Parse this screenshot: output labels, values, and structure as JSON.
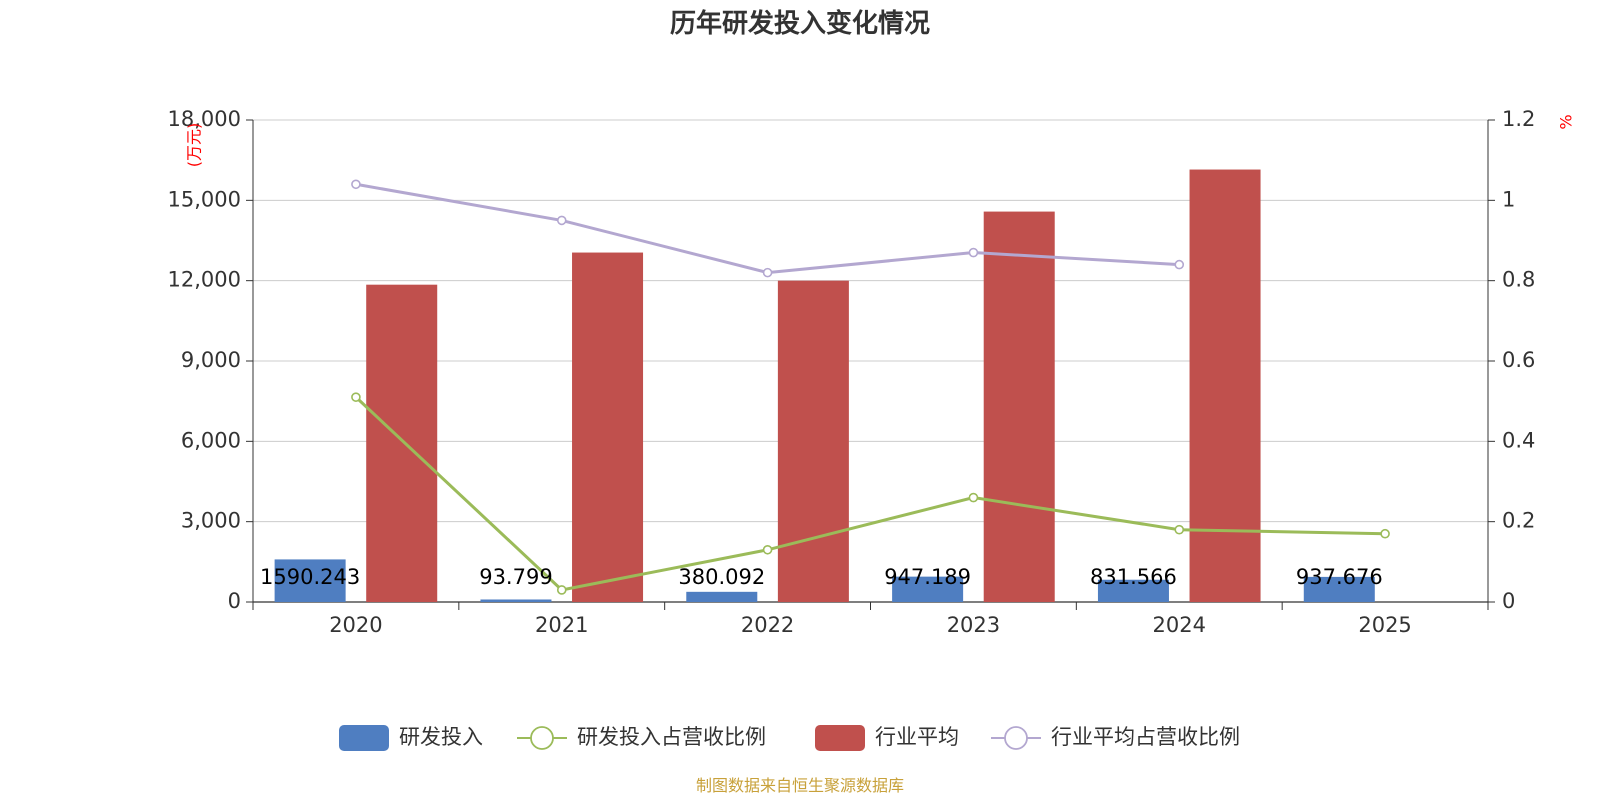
{
  "chart_data": {
    "type": "bar",
    "title": "历年研发投入变化情况",
    "categories": [
      "2020",
      "2021",
      "2022",
      "2023",
      "2024",
      "2025"
    ],
    "y_left": {
      "unit": "(万元)",
      "ylim": [
        0,
        18000
      ],
      "ticks": [
        "0",
        "3,000",
        "6,000",
        "9,000",
        "12,000",
        "15,000",
        "18,000"
      ]
    },
    "y_right": {
      "unit": "%",
      "ylim": [
        0,
        1.2
      ],
      "ticks": [
        "0",
        "0.2",
        "0.4",
        "0.6",
        "0.8",
        "1",
        "1.2"
      ]
    },
    "series": [
      {
        "name": "研发投入",
        "type": "bar",
        "axis": "left",
        "color": "#4f7ec1",
        "values": [
          1590.243,
          93.799,
          380.092,
          947.189,
          831.566,
          937.676
        ],
        "labels": [
          "1590.243",
          "93.799",
          "380.092",
          "947.189",
          "831.566",
          "937.676"
        ]
      },
      {
        "name": "研发投入占营收比例",
        "type": "line",
        "axis": "right",
        "color": "#9bbb59",
        "values": [
          0.51,
          0.03,
          0.13,
          0.26,
          0.18,
          0.17
        ]
      },
      {
        "name": "行业平均",
        "type": "bar",
        "axis": "left",
        "color": "#c0504d",
        "values": [
          11850,
          13050,
          12000,
          14580,
          16150,
          null
        ]
      },
      {
        "name": "行业平均占营收比例",
        "type": "line",
        "axis": "right",
        "color": "#b3a7d0",
        "values": [
          1.04,
          0.95,
          0.82,
          0.87,
          0.84,
          null
        ]
      }
    ],
    "grid": true,
    "legend_position": "bottom"
  },
  "footer": {
    "source": "制图数据来自恒生聚源数据库"
  }
}
